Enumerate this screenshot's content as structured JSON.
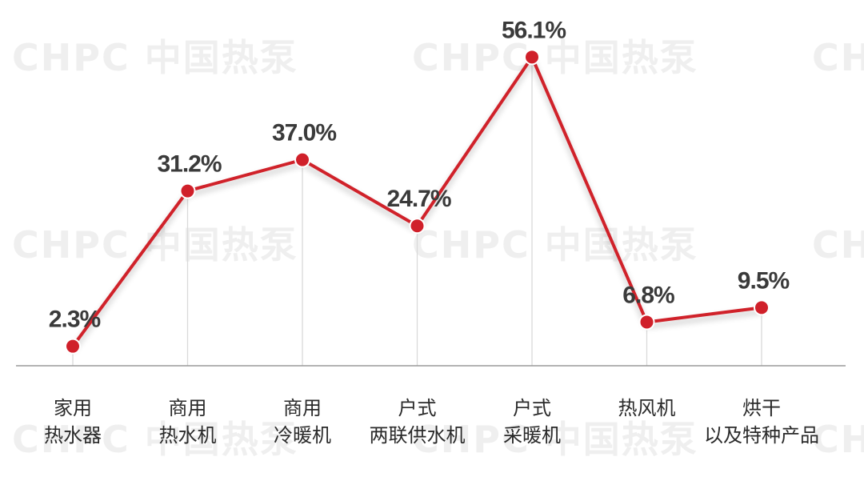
{
  "watermark": "CHPC 中国热泵",
  "chart_data": {
    "type": "line",
    "title": "",
    "xlabel": "",
    "ylabel": "",
    "categories": [
      [
        "家用",
        "热水器"
      ],
      [
        "商用",
        "热水机"
      ],
      [
        "商用",
        "冷暖机"
      ],
      [
        "户式",
        "两联供水机"
      ],
      [
        "户式",
        "采暖机"
      ],
      [
        "热风机"
      ],
      [
        "烘干",
        "以及特种产品"
      ]
    ],
    "values": [
      2.3,
      31.2,
      37.0,
      24.7,
      56.1,
      6.8,
      9.5
    ],
    "value_labels": [
      "2.3%",
      "31.2%",
      "37.0%",
      "24.7%",
      "56.1%",
      "6.8%",
      "9.5%"
    ],
    "ylim": [
      -4,
      63
    ],
    "grid": false,
    "legend": "none",
    "line_color": "#d0202a",
    "marker_color": "#d0202a",
    "dropline_color": "#d9d9d9",
    "axis_color": "#9a9a9a"
  }
}
